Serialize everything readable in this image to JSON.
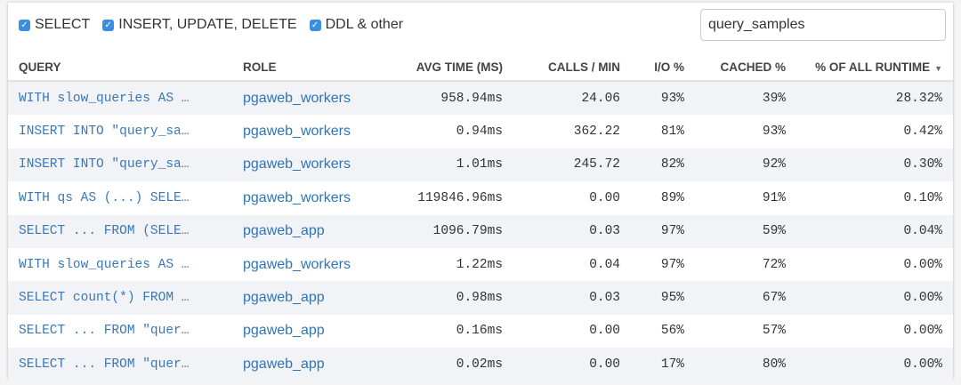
{
  "filters": [
    {
      "label": "SELECT",
      "checked": true
    },
    {
      "label": "INSERT, UPDATE, DELETE",
      "checked": true
    },
    {
      "label": "DDL & other",
      "checked": true
    }
  ],
  "search": {
    "value": "query_samples"
  },
  "columns": {
    "query": "QUERY",
    "role": "ROLE",
    "avg": "AVG TIME (MS)",
    "calls": "CALLS / MIN",
    "io": "I/O %",
    "cached": "CACHED %",
    "runtime": "% OF ALL RUNTIME"
  },
  "sort": {
    "column": "runtime",
    "direction": "desc",
    "icon": "caret-down-icon"
  },
  "accent_color": "#3a78b5",
  "rows": [
    {
      "query": "WITH slow_queries AS …",
      "role": "pgaweb_workers",
      "avg": "958.94ms",
      "calls": "24.06",
      "io": "93%",
      "cached": "39%",
      "runtime": "28.32%"
    },
    {
      "query": "INSERT INTO \"query_sa…",
      "role": "pgaweb_workers",
      "avg": "0.94ms",
      "calls": "362.22",
      "io": "81%",
      "cached": "93%",
      "runtime": "0.42%"
    },
    {
      "query": "INSERT INTO \"query_sa…",
      "role": "pgaweb_workers",
      "avg": "1.01ms",
      "calls": "245.72",
      "io": "82%",
      "cached": "92%",
      "runtime": "0.30%"
    },
    {
      "query": "WITH qs AS (...) SELE…",
      "role": "pgaweb_workers",
      "avg": "119846.96ms",
      "calls": "0.00",
      "io": "89%",
      "cached": "91%",
      "runtime": "0.10%"
    },
    {
      "query": "SELECT ... FROM (SELE…",
      "role": "pgaweb_app",
      "avg": "1096.79ms",
      "calls": "0.03",
      "io": "97%",
      "cached": "59%",
      "runtime": "0.04%"
    },
    {
      "query": "WITH slow_queries AS …",
      "role": "pgaweb_workers",
      "avg": "1.22ms",
      "calls": "0.04",
      "io": "97%",
      "cached": "72%",
      "runtime": "0.00%"
    },
    {
      "query": "SELECT count(*) FROM …",
      "role": "pgaweb_app",
      "avg": "0.98ms",
      "calls": "0.03",
      "io": "95%",
      "cached": "67%",
      "runtime": "0.00%"
    },
    {
      "query": "SELECT ... FROM \"quer…",
      "role": "pgaweb_app",
      "avg": "0.16ms",
      "calls": "0.00",
      "io": "56%",
      "cached": "57%",
      "runtime": "0.00%"
    },
    {
      "query": "SELECT ... FROM \"quer…",
      "role": "pgaweb_app",
      "avg": "0.02ms",
      "calls": "0.00",
      "io": "17%",
      "cached": "80%",
      "runtime": "0.00%"
    }
  ]
}
